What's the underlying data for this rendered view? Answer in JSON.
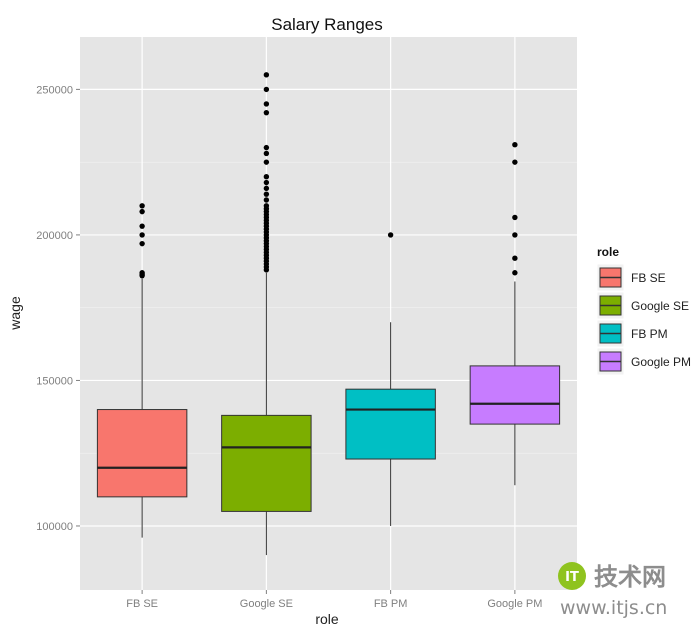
{
  "chart_data": {
    "type": "box",
    "title": "Salary Ranges",
    "xlabel": "role",
    "ylabel": "wage",
    "ylim": [
      78000,
      268000
    ],
    "yticks": [
      100000,
      150000,
      200000,
      250000
    ],
    "ytick_labels": [
      "100000",
      "150000",
      "200000",
      "250000"
    ],
    "grid": true,
    "legend": {
      "title": "role",
      "position": "right"
    },
    "categories": [
      "FB SE",
      "Google SE",
      "FB PM",
      "Google PM"
    ],
    "series": [
      {
        "name": "FB SE",
        "color": "#F8766D",
        "whisker_low": 96000,
        "q1": 110000,
        "median": 120000,
        "q3": 140000,
        "whisker_high": 185000,
        "outliers": [
          186000,
          186500,
          187000,
          197000,
          200000,
          203000,
          208000,
          210000
        ]
      },
      {
        "name": "Google SE",
        "color": "#7CAE00",
        "whisker_low": 90000,
        "q1": 105000,
        "median": 127000,
        "q3": 138000,
        "whisker_high": 187000,
        "outliers": [
          188000,
          189000,
          190000,
          191000,
          192000,
          193000,
          194000,
          195000,
          196000,
          197000,
          198000,
          199000,
          200000,
          201000,
          202000,
          203000,
          204000,
          205000,
          206000,
          207000,
          208000,
          209000,
          210000,
          212000,
          214000,
          216000,
          218000,
          220000,
          225000,
          228000,
          230000,
          242000,
          245000,
          250000,
          255000
        ]
      },
      {
        "name": "FB PM",
        "color": "#00BFC4",
        "whisker_low": 100000,
        "q1": 123000,
        "median": 140000,
        "q3": 147000,
        "whisker_high": 170000,
        "outliers": [
          200000
        ]
      },
      {
        "name": "Google PM",
        "color": "#C77CFF",
        "whisker_low": 114000,
        "q1": 135000,
        "median": 142000,
        "q3": 155000,
        "whisker_high": 184000,
        "outliers": [
          187000,
          192000,
          200000,
          206000,
          225000,
          231000
        ]
      }
    ]
  },
  "watermark": {
    "logo": "IT",
    "brand": "技术网",
    "url": "www.itjs.cn"
  }
}
